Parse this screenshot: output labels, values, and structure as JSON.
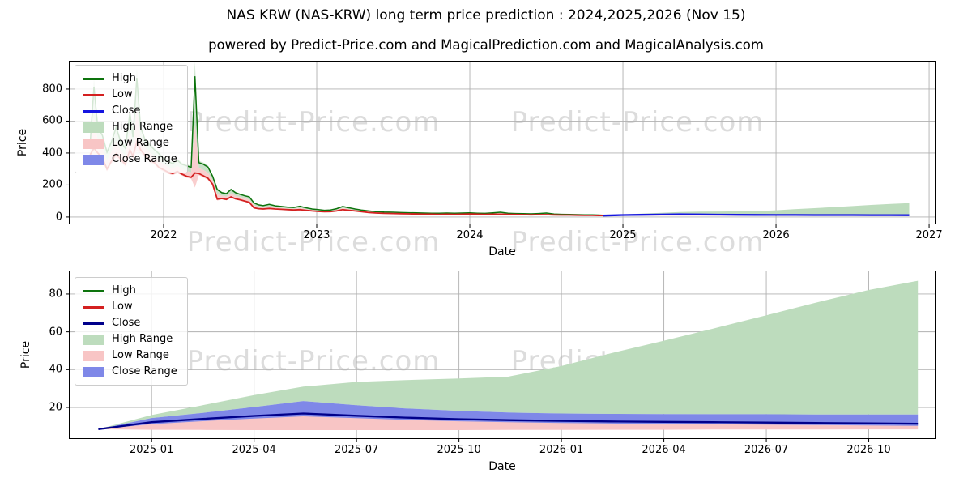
{
  "title": "NAS KRW (NAS-KRW) long term price prediction : 2024,2025,2026 (Nov 15)",
  "subtitle": "powered by Predict-Price.com and MagicalPrediction.com and MagicalAnalysis.com",
  "watermark_text": "Predict-Price.com",
  "colors": {
    "grid": "#b0b0b0",
    "spine": "#000000",
    "watermark": "#dcdcdc",
    "high_line": "#0d730d",
    "low_line": "#d42020",
    "close_line_top": "#1515e0",
    "close_line_bottom": "#00008b",
    "high_range_fill": "#bddcbd",
    "low_range_fill": "#f8c5c5",
    "close_range_fill": "#7f88e8"
  },
  "chart_data": [
    {
      "type": "line",
      "title": "NAS KRW (NAS-KRW) long term price prediction : 2024,2025,2026 (Nov 15)",
      "xlabel": "Date",
      "ylabel": "Price",
      "xlim": [
        2021.381,
        2027.042
      ],
      "ylim": [
        -46,
        977
      ],
      "grid": true,
      "legend_position": "upper left",
      "x_ticks": [
        {
          "v": 2022,
          "label": "2022"
        },
        {
          "v": 2023,
          "label": "2023"
        },
        {
          "v": 2024,
          "label": "2024"
        },
        {
          "v": 2025,
          "label": "2025"
        },
        {
          "v": 2026,
          "label": "2026"
        },
        {
          "v": 2027,
          "label": "2027"
        }
      ],
      "y_ticks": [
        {
          "v": 0,
          "label": "0"
        },
        {
          "v": 200,
          "label": "200"
        },
        {
          "v": 400,
          "label": "400"
        },
        {
          "v": 600,
          "label": "600"
        },
        {
          "v": 800,
          "label": "800"
        }
      ],
      "legend": [
        {
          "label": "High",
          "swatch": "line",
          "color": "#0d730d"
        },
        {
          "label": "Low",
          "swatch": "line",
          "color": "#d42020"
        },
        {
          "label": "Close",
          "swatch": "line",
          "color": "#1515e0"
        },
        {
          "label": "High Range",
          "swatch": "area",
          "color": "#bddcbd"
        },
        {
          "label": "Low Range",
          "swatch": "area",
          "color": "#f8c5c5"
        },
        {
          "label": "Close Range",
          "swatch": "area",
          "color": "#7f88e8"
        }
      ],
      "historical": {
        "comment": "points are [decimal_year, high, low]",
        "points": [
          [
            2021.52,
            460,
            390
          ],
          [
            2021.545,
            815,
            430
          ],
          [
            2021.57,
            560,
            400
          ],
          [
            2021.6,
            510,
            370
          ],
          [
            2021.63,
            405,
            300
          ],
          [
            2021.66,
            470,
            350
          ],
          [
            2021.69,
            560,
            395
          ],
          [
            2021.72,
            470,
            360
          ],
          [
            2021.75,
            430,
            330
          ],
          [
            2021.78,
            650,
            420
          ],
          [
            2021.8,
            500,
            380
          ],
          [
            2021.825,
            870,
            470
          ],
          [
            2021.85,
            560,
            420
          ],
          [
            2021.88,
            480,
            385
          ],
          [
            2021.91,
            450,
            355
          ],
          [
            2021.94,
            420,
            340
          ],
          [
            2021.97,
            395,
            310
          ],
          [
            2022.0,
            365,
            295
          ],
          [
            2022.03,
            345,
            280
          ],
          [
            2022.06,
            335,
            272
          ],
          [
            2022.09,
            355,
            285
          ],
          [
            2022.12,
            330,
            268
          ],
          [
            2022.15,
            320,
            255
          ],
          [
            2022.18,
            310,
            248
          ],
          [
            2022.205,
            880,
            275
          ],
          [
            2022.23,
            340,
            272
          ],
          [
            2022.26,
            330,
            258
          ],
          [
            2022.29,
            312,
            242
          ],
          [
            2022.32,
            255,
            205
          ],
          [
            2022.35,
            172,
            112
          ],
          [
            2022.38,
            152,
            116
          ],
          [
            2022.41,
            146,
            110
          ],
          [
            2022.44,
            172,
            126
          ],
          [
            2022.47,
            152,
            114
          ],
          [
            2022.5,
            142,
            108
          ],
          [
            2022.53,
            133,
            100
          ],
          [
            2022.56,
            126,
            92
          ],
          [
            2022.59,
            88,
            58
          ],
          [
            2022.62,
            76,
            52
          ],
          [
            2022.65,
            71,
            50
          ],
          [
            2022.69,
            79,
            54
          ],
          [
            2022.73,
            70,
            50
          ],
          [
            2022.77,
            66,
            48
          ],
          [
            2022.81,
            62,
            46
          ],
          [
            2022.85,
            60,
            44
          ],
          [
            2022.89,
            67,
            46
          ],
          [
            2022.93,
            58,
            42
          ],
          [
            2022.97,
            50,
            38
          ],
          [
            2023.01,
            46,
            35
          ],
          [
            2023.05,
            42,
            33
          ],
          [
            2023.09,
            44,
            34
          ],
          [
            2023.13,
            52,
            38
          ],
          [
            2023.17,
            66,
            46
          ],
          [
            2023.21,
            58,
            42
          ],
          [
            2023.25,
            50,
            38
          ],
          [
            2023.29,
            44,
            34
          ],
          [
            2023.34,
            38,
            28
          ],
          [
            2023.39,
            33,
            25
          ],
          [
            2023.44,
            31,
            23
          ],
          [
            2023.5,
            30,
            22
          ],
          [
            2023.55,
            28,
            21
          ],
          [
            2023.6,
            27,
            20
          ],
          [
            2023.65,
            26,
            19
          ],
          [
            2023.7,
            25,
            18
          ],
          [
            2023.75,
            24,
            18
          ],
          [
            2023.8,
            24,
            17
          ],
          [
            2023.85,
            25,
            18
          ],
          [
            2023.9,
            24,
            17
          ],
          [
            2023.95,
            25,
            18
          ],
          [
            2024.0,
            26,
            19
          ],
          [
            2024.05,
            24,
            18
          ],
          [
            2024.1,
            23,
            17
          ],
          [
            2024.15,
            26,
            18
          ],
          [
            2024.2,
            30,
            18
          ],
          [
            2024.25,
            24,
            17
          ],
          [
            2024.3,
            22,
            16
          ],
          [
            2024.35,
            21,
            15
          ],
          [
            2024.4,
            20,
            14
          ],
          [
            2024.45,
            22,
            15
          ],
          [
            2024.5,
            25,
            15
          ],
          [
            2024.55,
            19,
            13
          ],
          [
            2024.6,
            17,
            12
          ],
          [
            2024.65,
            16,
            12
          ],
          [
            2024.7,
            15,
            11
          ],
          [
            2024.75,
            14,
            10
          ],
          [
            2024.8,
            13,
            10
          ],
          [
            2024.84,
            12,
            9
          ],
          [
            2024.87,
            11,
            9
          ]
        ]
      },
      "prediction": {
        "x": [
          2024.87,
          2025.0,
          2025.12,
          2025.25,
          2025.37,
          2025.5,
          2025.62,
          2025.75,
          2025.87,
          2026.0,
          2026.12,
          2026.25,
          2026.37,
          2026.5,
          2026.62,
          2026.75,
          2026.87
        ],
        "close": [
          8.5,
          12.2,
          13.9,
          15.5,
          16.8,
          15.6,
          14.6,
          13.8,
          13.3,
          12.9,
          12.6,
          12.4,
          12.2,
          12.0,
          11.8,
          11.6,
          11.4
        ],
        "close_high": [
          8.5,
          14.4,
          17.0,
          20.2,
          23.4,
          21.2,
          19.5,
          18.2,
          17.3,
          16.8,
          16.6,
          16.5,
          16.4,
          16.4,
          16.3,
          16.3,
          16.3
        ],
        "close_low": [
          8.5,
          11.2,
          12.7,
          14.1,
          15.3,
          14.3,
          13.4,
          12.7,
          12.2,
          11.8,
          11.5,
          11.3,
          11.1,
          10.9,
          10.7,
          10.5,
          10.3
        ],
        "high_top": [
          8.5,
          16.0,
          21.0,
          26.5,
          31.0,
          33.5,
          34.5,
          35.3,
          36.3,
          41.9,
          48.6,
          55.3,
          61.7,
          68.7,
          75.4,
          82.1,
          87.0
        ],
        "low_bottom": [
          8.5,
          8.2,
          8.1,
          8.0,
          8.0,
          8.0,
          8.0,
          8.0,
          8.1,
          8.1,
          8.2,
          8.2,
          8.3,
          8.3,
          8.3,
          8.4,
          8.4
        ]
      },
      "close_color": "#1515e0"
    },
    {
      "type": "line",
      "title": "",
      "xlabel": "Date",
      "ylabel": "Price",
      "xlim": [
        2024.798,
        2026.913
      ],
      "ylim": [
        3.3,
        92.4
      ],
      "grid": true,
      "legend_position": "upper left",
      "x_ticks": [
        {
          "v": 2025.0,
          "label": "2025-01"
        },
        {
          "v": 2025.25,
          "label": "2025-04"
        },
        {
          "v": 2025.5,
          "label": "2025-07"
        },
        {
          "v": 2025.75,
          "label": "2025-10"
        },
        {
          "v": 2026.0,
          "label": "2026-01"
        },
        {
          "v": 2026.25,
          "label": "2026-04"
        },
        {
          "v": 2026.5,
          "label": "2026-07"
        },
        {
          "v": 2026.75,
          "label": "2026-10"
        }
      ],
      "y_ticks": [
        {
          "v": 20,
          "label": "20"
        },
        {
          "v": 40,
          "label": "40"
        },
        {
          "v": 60,
          "label": "60"
        },
        {
          "v": 80,
          "label": "80"
        }
      ],
      "legend": [
        {
          "label": "High",
          "swatch": "line",
          "color": "#0d730d"
        },
        {
          "label": "Low",
          "swatch": "line",
          "color": "#d42020"
        },
        {
          "label": "Close",
          "swatch": "line",
          "color": "#00008b"
        },
        {
          "label": "High Range",
          "swatch": "area",
          "color": "#bddcbd"
        },
        {
          "label": "Low Range",
          "swatch": "area",
          "color": "#f8c5c5"
        },
        {
          "label": "Close Range",
          "swatch": "area",
          "color": "#7f88e8"
        }
      ],
      "prediction": {
        "x": [
          2024.87,
          2025.0,
          2025.12,
          2025.25,
          2025.37,
          2025.5,
          2025.62,
          2025.75,
          2025.87,
          2026.0,
          2026.12,
          2026.25,
          2026.37,
          2026.5,
          2026.62,
          2026.75,
          2026.87
        ],
        "close": [
          8.5,
          12.2,
          13.9,
          15.5,
          16.8,
          15.6,
          14.6,
          13.8,
          13.3,
          12.9,
          12.6,
          12.4,
          12.2,
          12.0,
          11.8,
          11.6,
          11.4
        ],
        "close_high": [
          8.5,
          14.4,
          17.0,
          20.2,
          23.4,
          21.2,
          19.5,
          18.2,
          17.3,
          16.8,
          16.6,
          16.5,
          16.4,
          16.4,
          16.3,
          16.3,
          16.3
        ],
        "close_low": [
          8.5,
          11.2,
          12.7,
          14.1,
          15.3,
          14.3,
          13.4,
          12.7,
          12.2,
          11.8,
          11.5,
          11.3,
          11.1,
          10.9,
          10.7,
          10.5,
          10.3
        ],
        "high_top": [
          8.5,
          16.0,
          21.0,
          26.5,
          31.0,
          33.5,
          34.5,
          35.3,
          36.3,
          41.9,
          48.6,
          55.3,
          61.7,
          68.7,
          75.4,
          82.1,
          87.0
        ],
        "low_bottom": [
          8.5,
          8.2,
          8.1,
          8.0,
          8.0,
          8.0,
          8.0,
          8.0,
          8.1,
          8.1,
          8.2,
          8.2,
          8.3,
          8.3,
          8.3,
          8.4,
          8.4
        ]
      },
      "close_color": "#00008b"
    }
  ]
}
